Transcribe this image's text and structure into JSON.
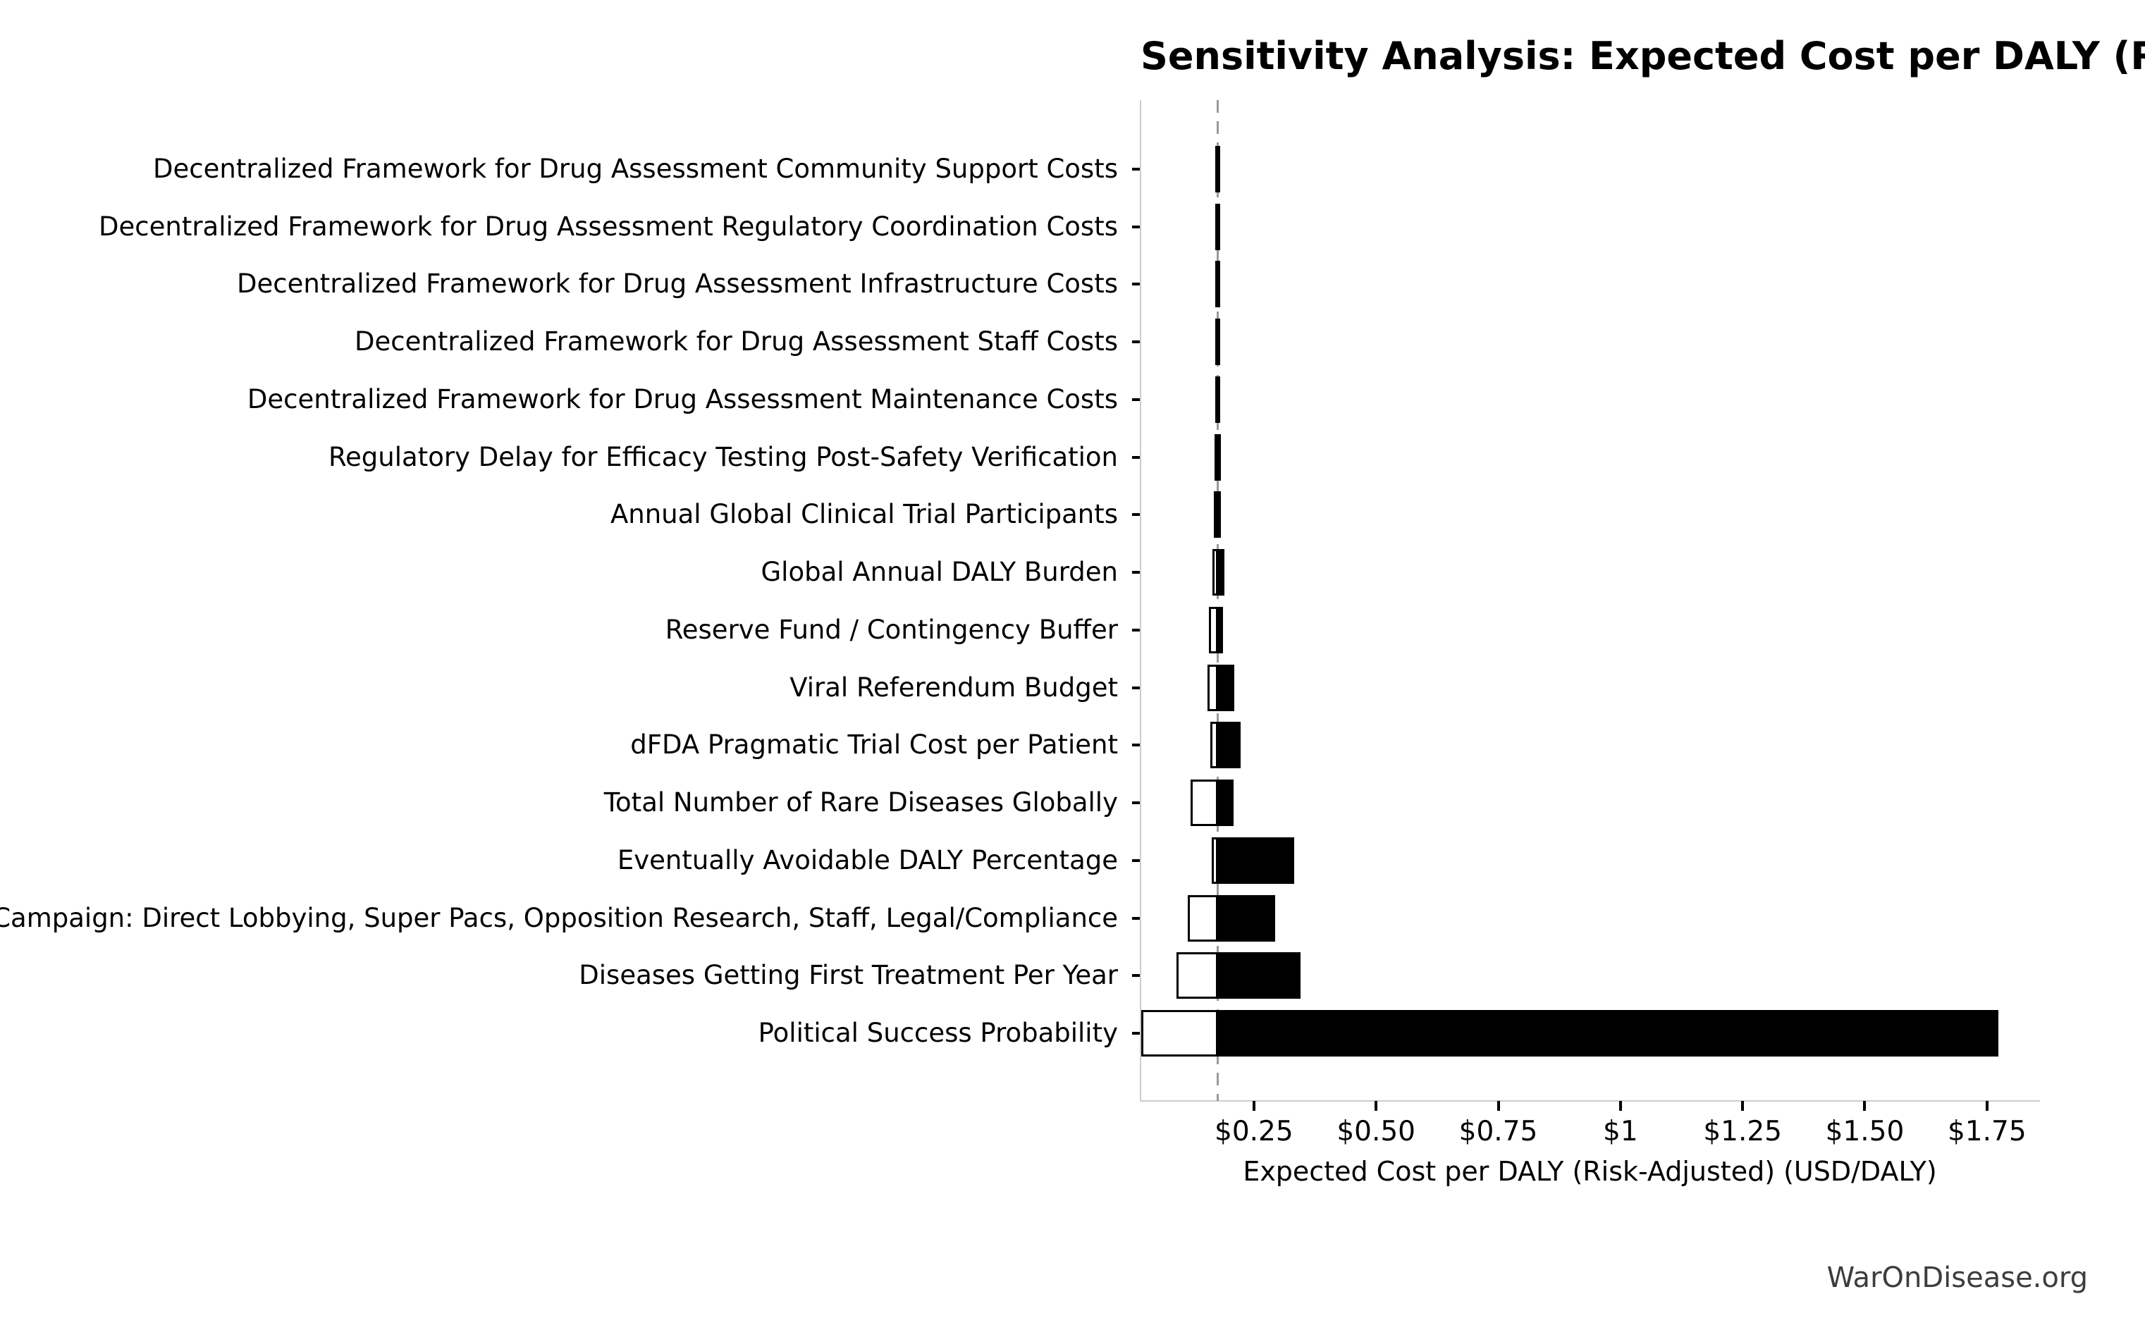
{
  "chart_data": {
    "type": "bar",
    "subtype": "tornado-sensitivity",
    "orientation": "horizontal",
    "title": "Sensitivity Analysis: Expected Cost per DALY (Risk-Adjusted)",
    "xlabel": "Expected Cost per DALY (Risk-Adjusted) (USD/DALY)",
    "baseline_value": 0.176,
    "xlim": [
      0.018,
      1.857
    ],
    "grid": false,
    "legend": false,
    "x_ticks": [
      {
        "value": 0.25,
        "label": "$0.25"
      },
      {
        "value": 0.5,
        "label": "$0.50"
      },
      {
        "value": 0.75,
        "label": "$0.75"
      },
      {
        "value": 1.0,
        "label": "$1"
      },
      {
        "value": 1.25,
        "label": "$1.25"
      },
      {
        "value": 1.5,
        "label": "$1.50"
      },
      {
        "value": 1.75,
        "label": "$1.75"
      }
    ],
    "rows": [
      {
        "label": "Decentralized Framework for Drug Assessment Community Support Costs",
        "low": 0.172,
        "high": 0.181
      },
      {
        "label": "Decentralized Framework for Drug Assessment Regulatory Coordination Costs",
        "low": 0.172,
        "high": 0.181
      },
      {
        "label": "Decentralized Framework for Drug Assessment Infrastructure Costs",
        "low": 0.172,
        "high": 0.181
      },
      {
        "label": "Decentralized Framework for Drug Assessment Staff Costs",
        "low": 0.172,
        "high": 0.181
      },
      {
        "label": "Decentralized Framework for Drug Assessment Maintenance Costs",
        "low": 0.172,
        "high": 0.181
      },
      {
        "label": "Regulatory Delay for Efficacy Testing Post-Safety Verification",
        "low": 0.17,
        "high": 0.183
      },
      {
        "label": "Annual Global Clinical Trial Participants",
        "low": 0.168,
        "high": 0.183
      },
      {
        "label": "Global Annual DALY Burden",
        "low": 0.165,
        "high": 0.19
      },
      {
        "label": "Reserve Fund / Contingency Buffer",
        "low": 0.158,
        "high": 0.187
      },
      {
        "label": "Viral Referendum Budget",
        "low": 0.155,
        "high": 0.21
      },
      {
        "label": "dFDA Pragmatic Trial Cost per Patient",
        "low": 0.161,
        "high": 0.223
      },
      {
        "label": "Total Number of Rare Diseases Globally",
        "low": 0.121,
        "high": 0.208
      },
      {
        "label": "Eventually Avoidable DALY Percentage",
        "low": 0.164,
        "high": 0.333
      },
      {
        "label": "Political Lobbying Campaign: Direct Lobbying, Super Pacs, Opposition Research, Staff, Legal/Compliance",
        "low": 0.115,
        "high": 0.294
      },
      {
        "label": "Diseases Getting First Treatment Per Year",
        "low": 0.092,
        "high": 0.345
      },
      {
        "label": "Political Success Probability",
        "low": 0.019,
        "high": 1.774
      }
    ],
    "colors": {
      "bar_fill_high": "#000000",
      "bar_fill_low": "#ffffff",
      "bar_edge": "#000000",
      "baseline_line": "#999999",
      "axis_spine": "#cccccc",
      "text": "#000000",
      "footer_text": "#3d3d3d",
      "background": "#ffffff"
    }
  },
  "footer": {
    "text": "WarOnDisease.org"
  }
}
